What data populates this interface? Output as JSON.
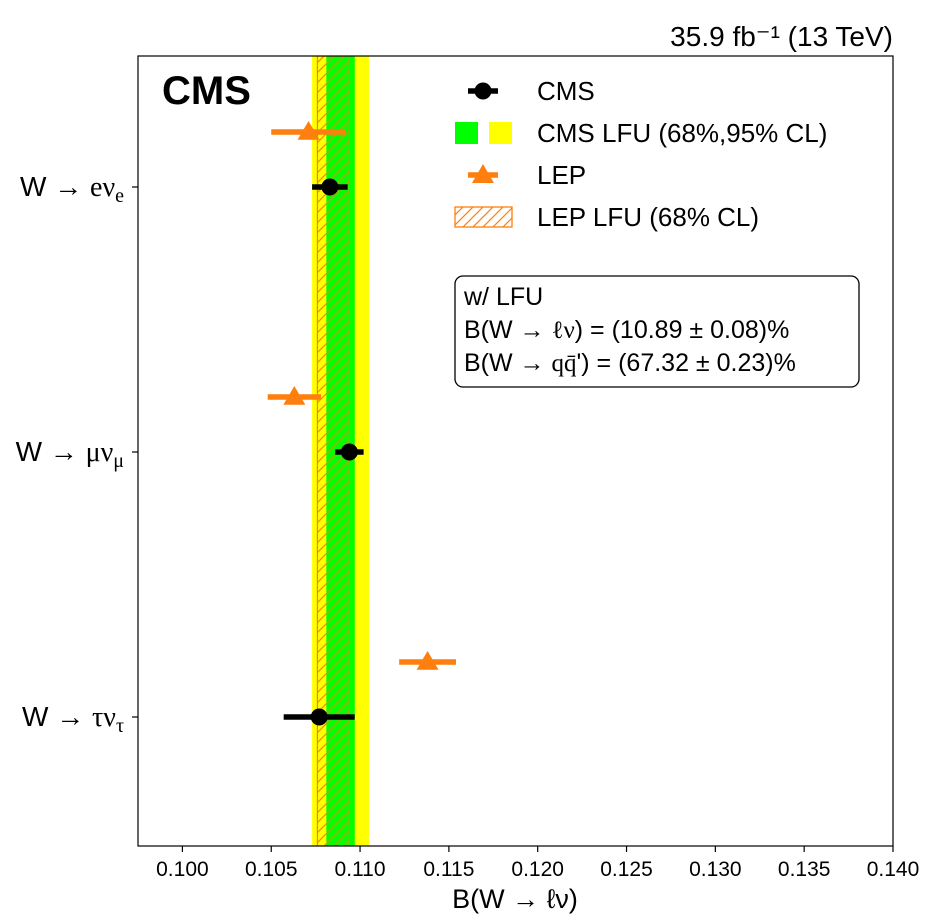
{
  "chart_data": {
    "type": "scatter",
    "title": "",
    "lumi_label": "35.9 fb⁻¹ (13 TeV)",
    "experiment_label": "CMS",
    "xlabel": "B(W → ℓν)",
    "ylabel": "",
    "xlim": [
      0.0975,
      0.14
    ],
    "grid": false,
    "legend_position": "top-right",
    "x_ticks": [
      "0.100",
      "0.105",
      "0.110",
      "0.115",
      "0.120",
      "0.125",
      "0.130",
      "0.135",
      "0.140"
    ],
    "categories": [
      "W → eνₑ",
      "W → μνμ",
      "W → τντ"
    ],
    "category_label_parts": [
      {
        "prefix": "W → ",
        "main": "eν",
        "sub": "e"
      },
      {
        "prefix": "W → ",
        "main": "μν",
        "sub": "μ"
      },
      {
        "prefix": "W → ",
        "main": "τν",
        "sub": "τ"
      }
    ],
    "series": [
      {
        "name": "CMS",
        "color": "#000000",
        "marker": "circle",
        "points": [
          {
            "category": 0,
            "x": 0.1083,
            "xerr": 0.001
          },
          {
            "category": 1,
            "x": 0.1094,
            "xerr": 0.0008
          },
          {
            "category": 2,
            "x": 0.1077,
            "xerr": 0.002
          }
        ]
      },
      {
        "name": "LEP",
        "color": "#ff7f0e",
        "marker": "triangle",
        "points": [
          {
            "category": 0,
            "x": 0.1071,
            "xerr": 0.0021
          },
          {
            "category": 1,
            "x": 0.1063,
            "xerr": 0.0015
          },
          {
            "category": 2,
            "x": 0.1138,
            "xerr": 0.0016
          }
        ]
      }
    ],
    "bands": [
      {
        "name": "CMS LFU 95% CL",
        "color": "#ffff00",
        "x_range": [
          0.1073,
          0.1105
        ]
      },
      {
        "name": "CMS LFU 68% CL",
        "color": "#00ff00",
        "x_range": [
          0.1081,
          0.1097
        ]
      },
      {
        "name": "LEP LFU (68% CL)",
        "color": "#ff7f0e",
        "hatched": true,
        "x_range": [
          0.1076,
          0.1094
        ]
      }
    ],
    "legend": [
      {
        "label": "CMS",
        "kind": "marker-circle",
        "color": "#000000"
      },
      {
        "label": "CMS LFU (68%,95% CL)",
        "kind": "band-pair",
        "colors": [
          "#00ff00",
          "#ffff00"
        ]
      },
      {
        "label": "LEP",
        "kind": "marker-triangle",
        "color": "#ff7f0e"
      },
      {
        "label": "LEP LFU (68% CL)",
        "kind": "hatch",
        "color": "#ff7f0e"
      }
    ],
    "annotation": {
      "line1": "w/ LFU",
      "line2_prefix": "B(W → ",
      "line2_main": "ℓν",
      "line2_suffix": ") = (10.89 ± 0.08)%",
      "line3_prefix": "B(W → ",
      "line3_main": "q",
      "line3_bar": "q̄",
      "line3_suffix": "') = (67.32 ± 0.23)%"
    }
  }
}
